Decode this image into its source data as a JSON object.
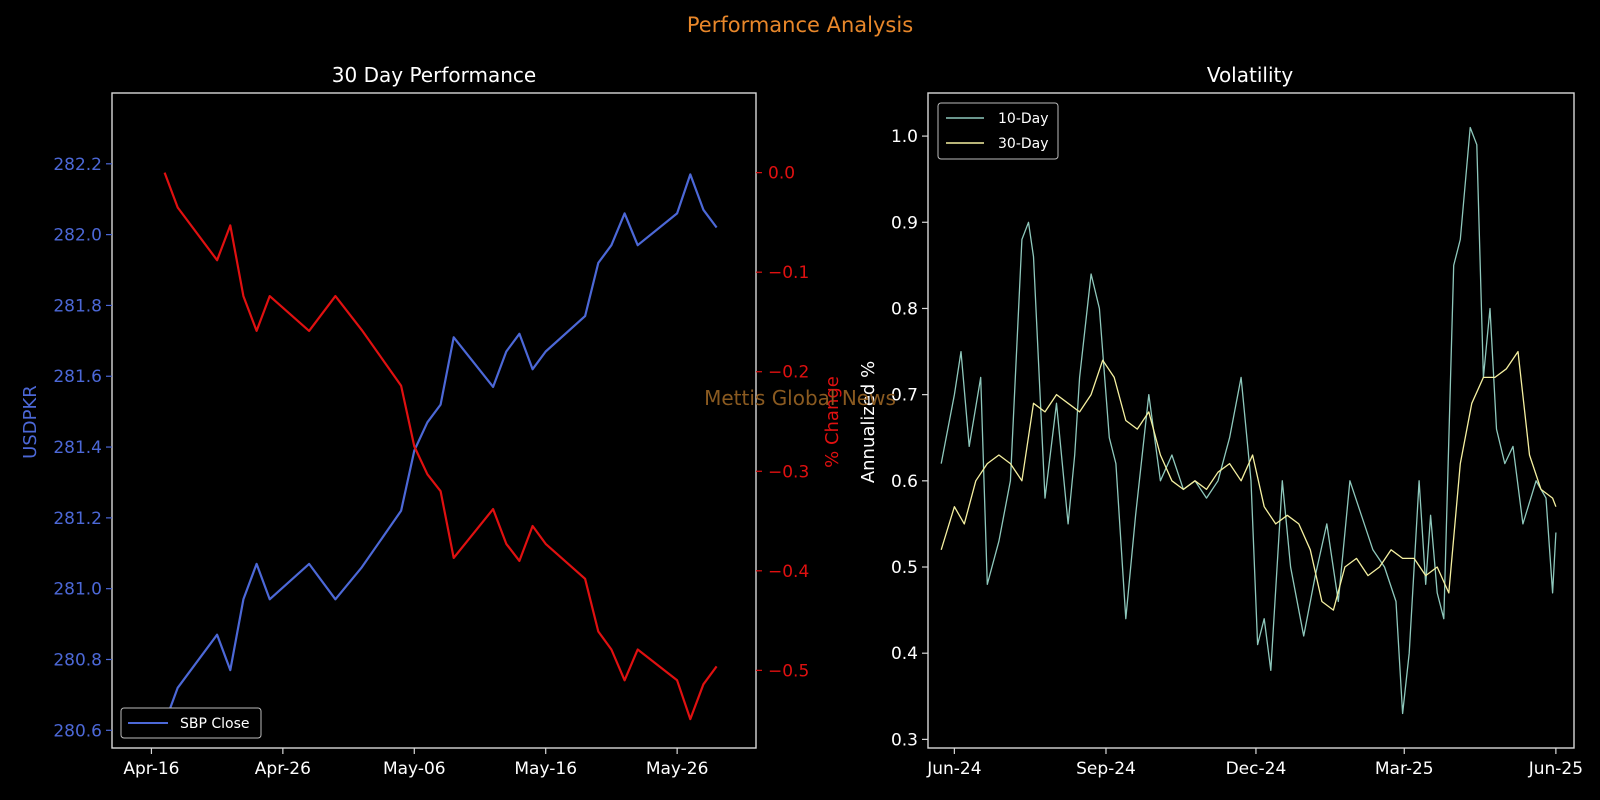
{
  "figure": {
    "suptitle": "Performance Analysis",
    "watermark": "Mettis Global News",
    "colors": {
      "suptitle": "#e8872a",
      "watermark": "#8a5a20",
      "price": "#4c68d7",
      "change": "#e01010",
      "vol10": "#8ec8bc",
      "vol30": "#f5f0a0",
      "frame": "#d8d8d8",
      "text": "#ffffff"
    }
  },
  "chart_data": [
    {
      "type": "line",
      "title": "30 Day Performance",
      "xlabel": "",
      "ylabel": "USDPKR",
      "y2label": "% Change",
      "x_tick_labels": [
        "Apr-16",
        "Apr-26",
        "May-06",
        "May-16",
        "May-26"
      ],
      "x_tick_dates": [
        "2025-04-16",
        "2025-04-26",
        "2025-05-06",
        "2025-05-16",
        "2025-05-26"
      ],
      "ylim": [
        280.55,
        282.4
      ],
      "y_ticks": [
        280.6,
        280.8,
        281.0,
        281.2,
        281.4,
        281.6,
        281.8,
        282.0,
        282.2
      ],
      "y_tick_labels": [
        "280.6",
        "280.8",
        "281.0",
        "281.2",
        "281.4",
        "281.6",
        "281.8",
        "282.0",
        "282.2"
      ],
      "y2lim": [
        -0.578,
        0.08
      ],
      "y2_ticks": [
        0.0,
        -0.1,
        -0.2,
        -0.3,
        -0.4,
        -0.5
      ],
      "y2_tick_labels": [
        "0.0",
        "−0.1",
        "−0.2",
        "−0.3",
        "−0.4",
        "−0.5"
      ],
      "legend": {
        "placement": "lower-left",
        "entries": [
          "SBP Close"
        ]
      },
      "grid": false,
      "series": [
        {
          "name": "SBP Close",
          "axis": "left",
          "x": [
            "2025-04-17",
            "2025-04-18",
            "2025-04-21",
            "2025-04-22",
            "2025-04-23",
            "2025-04-24",
            "2025-04-25",
            "2025-04-28",
            "2025-04-30",
            "2025-05-02",
            "2025-05-05",
            "2025-05-06",
            "2025-05-07",
            "2025-05-08",
            "2025-05-09",
            "2025-05-12",
            "2025-05-13",
            "2025-05-14",
            "2025-05-15",
            "2025-05-16",
            "2025-05-19",
            "2025-05-20",
            "2025-05-21",
            "2025-05-22",
            "2025-05-23",
            "2025-05-26",
            "2025-05-27",
            "2025-05-28",
            "2025-05-29"
          ],
          "values": [
            280.62,
            280.72,
            280.87,
            280.77,
            280.97,
            281.07,
            280.97,
            281.07,
            280.97,
            281.06,
            281.22,
            281.39,
            281.47,
            281.52,
            281.71,
            281.57,
            281.67,
            281.72,
            281.62,
            281.67,
            281.77,
            281.92,
            281.97,
            282.06,
            281.97,
            282.06,
            282.17,
            282.07,
            282.02
          ]
        },
        {
          "name": "% Change",
          "axis": "right",
          "x": [
            "2025-04-17",
            "2025-04-18",
            "2025-04-21",
            "2025-04-22",
            "2025-04-23",
            "2025-04-24",
            "2025-04-25",
            "2025-04-28",
            "2025-04-30",
            "2025-05-02",
            "2025-05-05",
            "2025-05-06",
            "2025-05-07",
            "2025-05-08",
            "2025-05-09",
            "2025-05-12",
            "2025-05-13",
            "2025-05-14",
            "2025-05-15",
            "2025-05-16",
            "2025-05-19",
            "2025-05-20",
            "2025-05-21",
            "2025-05-22",
            "2025-05-23",
            "2025-05-26",
            "2025-05-27",
            "2025-05-28",
            "2025-05-29"
          ],
          "values": [
            0.0,
            -0.035,
            -0.088,
            -0.053,
            -0.124,
            -0.159,
            -0.124,
            -0.159,
            -0.124,
            -0.158,
            -0.214,
            -0.275,
            -0.303,
            -0.32,
            -0.387,
            -0.338,
            -0.373,
            -0.39,
            -0.355,
            -0.373,
            -0.408,
            -0.461,
            -0.479,
            -0.51,
            -0.479,
            -0.51,
            -0.549,
            -0.514,
            -0.496
          ]
        }
      ]
    },
    {
      "type": "line",
      "title": "Volatility",
      "xlabel": "",
      "ylabel": "Annualized %",
      "x_tick_labels": [
        "Jun-24",
        "Sep-24",
        "Dec-24",
        "Mar-25",
        "Jun-25"
      ],
      "x_tick_dates": [
        "2024-06-01",
        "2024-09-01",
        "2024-12-01",
        "2025-03-01",
        "2025-06-01"
      ],
      "xlim": [
        "2024-05-16",
        "2025-06-12"
      ],
      "ylim": [
        0.29,
        1.05
      ],
      "y_ticks": [
        0.3,
        0.4,
        0.5,
        0.6,
        0.7,
        0.8,
        0.9,
        1.0
      ],
      "y_tick_labels": [
        "0.3",
        "0.4",
        "0.5",
        "0.6",
        "0.7",
        "0.8",
        "0.9",
        "1.0"
      ],
      "legend": {
        "placement": "upper-left",
        "entries": [
          "10-Day",
          "30-Day"
        ]
      },
      "grid": false,
      "series": [
        {
          "name": "10-Day",
          "x": [
            "2024-05-24",
            "2024-06-01",
            "2024-06-05",
            "2024-06-10",
            "2024-06-17",
            "2024-06-21",
            "2024-06-28",
            "2024-07-05",
            "2024-07-12",
            "2024-07-16",
            "2024-07-19",
            "2024-07-26",
            "2024-08-02",
            "2024-08-09",
            "2024-08-13",
            "2024-08-16",
            "2024-08-23",
            "2024-08-28",
            "2024-09-03",
            "2024-09-07",
            "2024-09-13",
            "2024-09-19",
            "2024-09-27",
            "2024-10-04",
            "2024-10-11",
            "2024-10-18",
            "2024-10-25",
            "2024-11-01",
            "2024-11-08",
            "2024-11-15",
            "2024-11-22",
            "2024-11-28",
            "2024-12-02",
            "2024-12-06",
            "2024-12-10",
            "2024-12-17",
            "2024-12-22",
            "2024-12-30",
            "2025-01-06",
            "2025-01-13",
            "2025-01-20",
            "2025-01-27",
            "2025-02-03",
            "2025-02-10",
            "2025-02-17",
            "2025-02-24",
            "2025-02-28",
            "2025-03-04",
            "2025-03-10",
            "2025-03-14",
            "2025-03-17",
            "2025-03-21",
            "2025-03-25",
            "2025-03-31",
            "2025-04-04",
            "2025-04-10",
            "2025-04-14",
            "2025-04-18",
            "2025-04-22",
            "2025-04-26",
            "2025-05-01",
            "2025-05-06",
            "2025-05-12",
            "2025-05-20",
            "2025-05-26",
            "2025-05-30",
            "2025-06-01"
          ],
          "values": [
            0.62,
            0.7,
            0.75,
            0.64,
            0.72,
            0.48,
            0.53,
            0.6,
            0.88,
            0.9,
            0.86,
            0.58,
            0.69,
            0.55,
            0.63,
            0.72,
            0.84,
            0.8,
            0.65,
            0.62,
            0.44,
            0.56,
            0.7,
            0.6,
            0.63,
            0.59,
            0.6,
            0.58,
            0.6,
            0.65,
            0.72,
            0.6,
            0.41,
            0.44,
            0.38,
            0.6,
            0.5,
            0.42,
            0.49,
            0.55,
            0.46,
            0.6,
            0.56,
            0.52,
            0.5,
            0.46,
            0.33,
            0.4,
            0.6,
            0.48,
            0.56,
            0.47,
            0.44,
            0.85,
            0.88,
            1.01,
            0.99,
            0.72,
            0.8,
            0.66,
            0.62,
            0.64,
            0.55,
            0.6,
            0.58,
            0.47,
            0.54
          ]
        },
        {
          "name": "30-Day",
          "x": [
            "2024-05-24",
            "2024-06-01",
            "2024-06-07",
            "2024-06-14",
            "2024-06-21",
            "2024-06-28",
            "2024-07-05",
            "2024-07-12",
            "2024-07-19",
            "2024-07-26",
            "2024-08-02",
            "2024-08-09",
            "2024-08-16",
            "2024-08-23",
            "2024-08-30",
            "2024-09-06",
            "2024-09-13",
            "2024-09-20",
            "2024-09-27",
            "2024-10-04",
            "2024-10-11",
            "2024-10-18",
            "2024-10-25",
            "2024-11-01",
            "2024-11-08",
            "2024-11-15",
            "2024-11-22",
            "2024-11-29",
            "2024-12-06",
            "2024-12-13",
            "2024-12-20",
            "2024-12-27",
            "2025-01-03",
            "2025-01-10",
            "2025-01-17",
            "2025-01-24",
            "2025-01-31",
            "2025-02-07",
            "2025-02-14",
            "2025-02-21",
            "2025-02-28",
            "2025-03-07",
            "2025-03-14",
            "2025-03-21",
            "2025-03-28",
            "2025-04-04",
            "2025-04-11",
            "2025-04-18",
            "2025-04-25",
            "2025-05-02",
            "2025-05-09",
            "2025-05-16",
            "2025-05-23",
            "2025-05-30",
            "2025-06-01"
          ],
          "values": [
            0.52,
            0.57,
            0.55,
            0.6,
            0.62,
            0.63,
            0.62,
            0.6,
            0.69,
            0.68,
            0.7,
            0.69,
            0.68,
            0.7,
            0.74,
            0.72,
            0.67,
            0.66,
            0.68,
            0.63,
            0.6,
            0.59,
            0.6,
            0.59,
            0.61,
            0.62,
            0.6,
            0.63,
            0.57,
            0.55,
            0.56,
            0.55,
            0.52,
            0.46,
            0.45,
            0.5,
            0.51,
            0.49,
            0.5,
            0.52,
            0.51,
            0.51,
            0.49,
            0.5,
            0.47,
            0.62,
            0.69,
            0.72,
            0.72,
            0.73,
            0.75,
            0.63,
            0.59,
            0.58,
            0.57
          ]
        }
      ]
    }
  ]
}
